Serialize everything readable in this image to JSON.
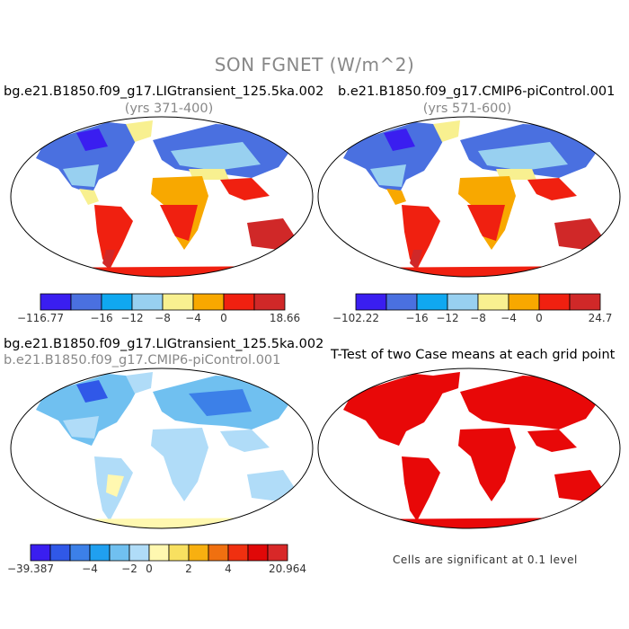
{
  "main_title": "SON FGNET (W/m^2)",
  "panels": {
    "p1": {
      "title": "bg.e21.B1850.f09_g17.LIGtransient_125.5ka.002",
      "subtitle": "(yrs 371-400)"
    },
    "p2": {
      "title": "b.e21.B1850.f09_g17.CMIP6-piControl.001",
      "subtitle": "(yrs 571-600)"
    },
    "p3": {
      "title": "bg.e21.B1850.f09_g17.LIGtransient_125.5ka.002",
      "subtitle": "b.e21.B1850.f09_g17.CMIP6-piControl.001"
    },
    "p4": {
      "title": "T-Test of two Case means at each grid point",
      "note": "Cells are significant at 0.1 level"
    }
  },
  "colorbars": {
    "cb1": {
      "colors": [
        "#3a1ef0",
        "#4a70e0",
        "#10a8f0",
        "#98d0f0",
        "#f8f090",
        "#f8a800",
        "#f02010",
        "#d02828"
      ],
      "labels": [
        "−116.77",
        "−16",
        "−12",
        "−8",
        "−4",
        "0",
        "18.66"
      ],
      "label_bounds": [
        0,
        2,
        3,
        4,
        5,
        6,
        8
      ]
    },
    "cb2": {
      "colors": [
        "#3a1ef0",
        "#4a70e0",
        "#10a8f0",
        "#98d0f0",
        "#f8f090",
        "#f8a800",
        "#f02010",
        "#d02828"
      ],
      "labels": [
        "−102.22",
        "−16",
        "−12",
        "−8",
        "−4",
        "0",
        "24.7"
      ],
      "label_bounds": [
        0,
        2,
        3,
        4,
        5,
        6,
        8
      ]
    },
    "cb3": {
      "colors": [
        "#3a1ef0",
        "#3058e8",
        "#3c80e8",
        "#20a0f0",
        "#70c0f0",
        "#b0dcf8",
        "#fff8b0",
        "#f8e060",
        "#f8b010",
        "#f07010",
        "#f03010",
        "#e00808",
        "#d82828"
      ],
      "labels": [
        "−39.387",
        "−4",
        "−2",
        "0",
        "2",
        "4",
        "20.964"
      ],
      "label_bounds": [
        0,
        3,
        5,
        6,
        8,
        10,
        13
      ]
    }
  },
  "chart_data": [
    {
      "type": "heatmap",
      "title": "bg.e21.B1850.f09_g17.LIGtransient_125.5ka.002",
      "subtitle": "(yrs 371-400)",
      "variable": "SON FGNET (W/m^2)",
      "colorbar_range": [
        -116.77,
        18.66
      ],
      "colorbar_levels": [
        -16,
        -12,
        -8,
        -4,
        0
      ]
    },
    {
      "type": "heatmap",
      "title": "b.e21.B1850.f09_g17.CMIP6-piControl.001",
      "subtitle": "(yrs 571-600)",
      "variable": "SON FGNET (W/m^2)",
      "colorbar_range": [
        -102.22,
        24.7
      ],
      "colorbar_levels": [
        -16,
        -12,
        -8,
        -4,
        0
      ]
    },
    {
      "type": "heatmap",
      "title": "bg.e21.B1850.f09_g17.LIGtransient_125.5ka.002",
      "subtitle": "b.e21.B1850.f09_g17.CMIP6-piControl.001",
      "variable": "SON FGNET (W/m^2)",
      "colorbar_range": [
        -39.387,
        20.964
      ],
      "colorbar_levels": [
        -4,
        -2,
        0,
        2,
        4
      ]
    },
    {
      "type": "heatmap",
      "title": "T-Test of two Case means at each grid point",
      "annotation": "Cells are significant at 0.1 level",
      "significance_level": 0.1
    }
  ]
}
